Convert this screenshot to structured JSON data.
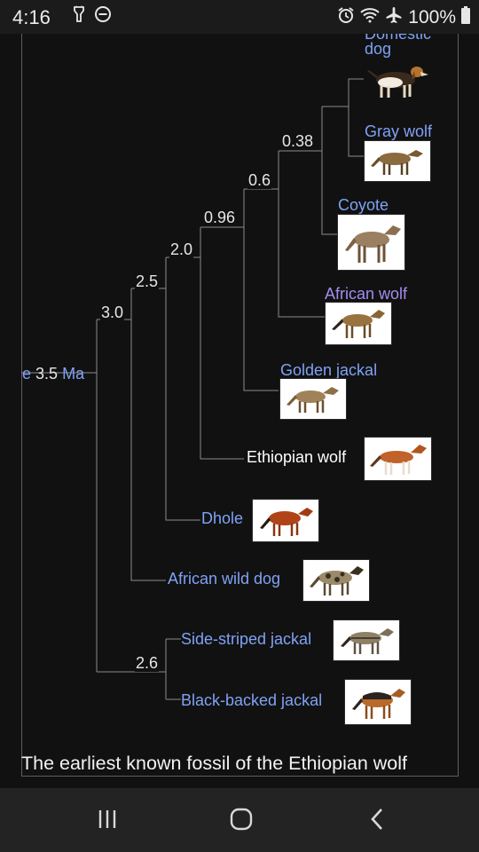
{
  "status": {
    "time": "4:16",
    "battery": "100%",
    "left_icons": [
      "flashlight-icon",
      "do-not-disturb-icon"
    ],
    "right_icons": [
      "alarm-icon",
      "wifi-icon",
      "airplane-mode-icon",
      "battery-icon"
    ]
  },
  "tree": {
    "root_label": "e",
    "root_value": "3.5",
    "root_unit": "Ma",
    "nodes": [
      "3.0",
      "2.5",
      "2.0",
      "0.96",
      "0.6",
      "0.38",
      "2.6"
    ],
    "taxa": {
      "domestic_dog": "Domestic dog",
      "gray_wolf": "Gray wolf",
      "coyote": "Coyote",
      "african_wolf": "African wolf",
      "golden_jackal": "Golden jackal",
      "ethiopian_wolf": "Ethiopian wolf",
      "dhole": "Dhole",
      "african_wild_dog": "African wild dog",
      "side_striped_jackal": "Side-striped jackal",
      "black_backed_jackal": "Black-backed jackal"
    }
  },
  "caption": "The earliest known fossil of the Ethiopian wolf",
  "nav": [
    "recent-apps-icon",
    "home-icon",
    "back-icon"
  ],
  "colors": {
    "link": "#7fa2f5",
    "visited": "#a58cf0",
    "background": "#111111"
  }
}
